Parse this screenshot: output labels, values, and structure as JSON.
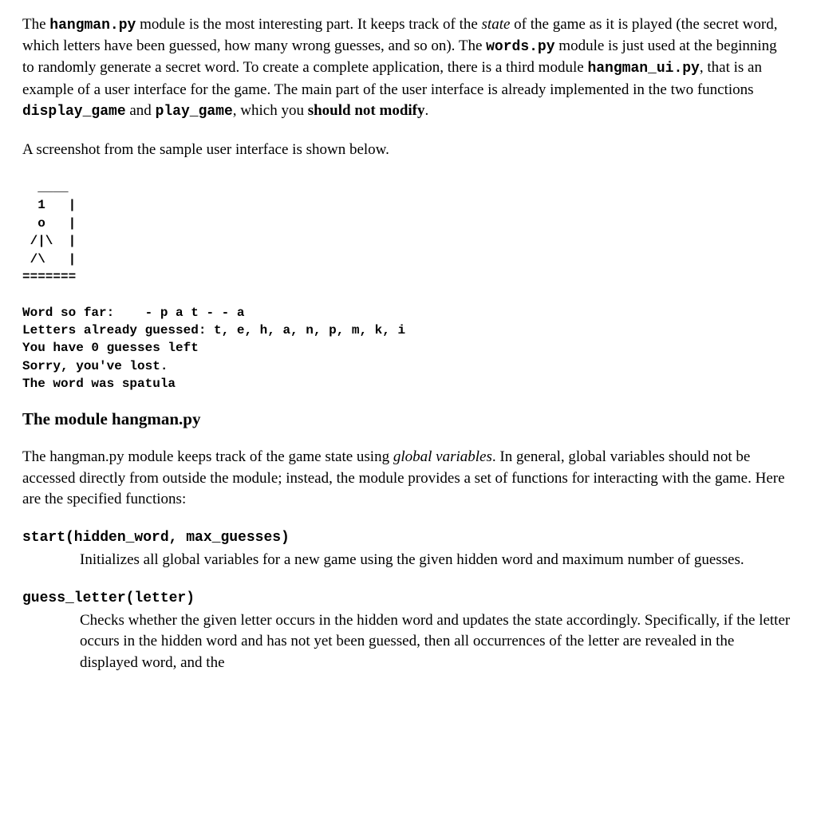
{
  "para1": {
    "t1": "The ",
    "c1": "hangman.py",
    "t2": " module is the most interesting part.  It keeps track of the ",
    "i1": "state",
    "t3": " of the game as it is played (the secret word, which letters have been guessed, how many wrong guesses, and so on).  The ",
    "c2": "words.py",
    "t4": " module is just used at the beginning to randomly generate a secret word.   To create a complete application, there is a third module ",
    "c3": "hangman_ui.py",
    "t5": ", that is an example of a user interface for the game.  The main part of the user interface is already implemented in the two functions ",
    "c4": "display_game",
    "t6": " and ",
    "c5": "play_game",
    "t7": ", which you ",
    "b1": "should not modify",
    "t8": "."
  },
  "para2": "A screenshot from the sample user interface is shown below.",
  "ui_sample": "  ____\n  1   |\n  o   |\n /|\\  |\n /\\   |\n=======\n\nWord so far:    - p a t - - a\nLetters already guessed: t, e, h, a, n, p, m, k, i\nYou have 0 guesses left\nSorry, you've lost.\nThe word was spatula",
  "section_heading": "The module hangman.py",
  "para3": {
    "t1": "The hangman.py module keeps track of the game state using ",
    "i1": "global variables",
    "t2": ".  In general, global variables should not be accessed directly from outside the module; instead, the module provides a set of functions for interacting with the game.  Here are the specified functions:"
  },
  "fn1": {
    "sig": "start(hidden_word, max_guesses)",
    "desc": "Initializes all global variables for a new game using the given hidden word and maximum number of guesses."
  },
  "fn2": {
    "sig": "guess_letter(letter)",
    "desc": "Checks whether the given letter occurs in the hidden word and updates the state accordingly.  Specifically, if the letter occurs in the hidden word and has not yet been guessed, then all occurrences of the letter are revealed in the displayed word, and the"
  }
}
